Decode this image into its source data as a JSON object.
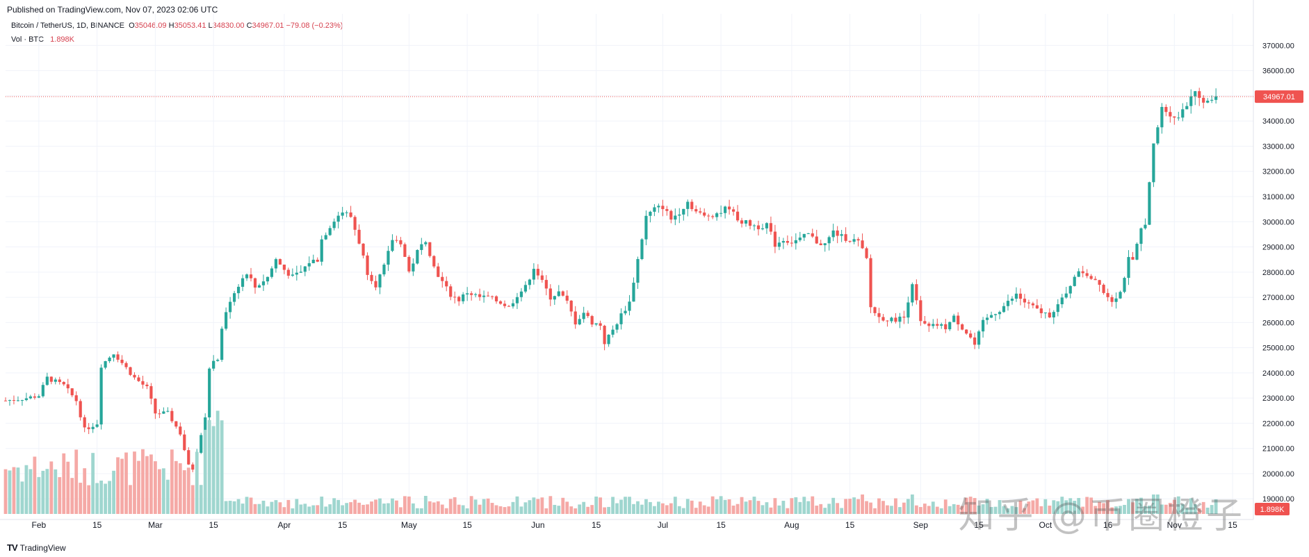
{
  "header": {
    "published": "Published on TradingView.com, Nov 07, 2023 02:06 UTC"
  },
  "legend": {
    "symbol": "Bitcoin / TetherUS, 1D, BINANCE",
    "o_label": "O",
    "open": "35046.09",
    "h_label": "H",
    "high": "35053.41",
    "l_label": "L",
    "low": "34830.00",
    "c_label": "C",
    "close": "34967.01",
    "change": "−79.08 (−0.23%)",
    "vol_label": "Vol · BTC",
    "vol_value": "1.898K"
  },
  "price_badge": "34967.01",
  "volume_badge": "1.898K",
  "footer": {
    "logo": "TV",
    "brand": "TradingView"
  },
  "watermark": "知乎 @币圈橙子",
  "colors": {
    "up": "#26a69a",
    "down": "#ef5350",
    "up_vol": "#9fd6cf",
    "down_vol": "#f5a9a6",
    "grid": "#f0f3fa",
    "axis_text": "#131722"
  },
  "chart_data": {
    "type": "candlestick",
    "title": "Bitcoin / TetherUS, 1D, BINANCE",
    "ylim": [
      18400,
      37700
    ],
    "y_ticks": [
      19000,
      20000,
      21000,
      22000,
      23000,
      24000,
      25000,
      26000,
      27000,
      28000,
      29000,
      30000,
      31000,
      32000,
      33000,
      34000,
      35000,
      36000,
      37000
    ],
    "y_tick_labels": [
      "19000.00",
      "20000.00",
      "21000.00",
      "22000.00",
      "23000.00",
      "24000.00",
      "25000.00",
      "26000.00",
      "27000.00",
      "28000.00",
      "29000.00",
      "30000.00",
      "31000.00",
      "32000.00",
      "33000.00",
      "34000.00",
      "35000.00",
      "36000.00",
      "37000.00"
    ],
    "x_ticks": [
      {
        "label": "Feb",
        "day": 0
      },
      {
        "label": "15",
        "day": 14
      },
      {
        "label": "Mar",
        "day": 28
      },
      {
        "label": "15",
        "day": 42
      },
      {
        "label": "Apr",
        "day": 59
      },
      {
        "label": "15",
        "day": 73
      },
      {
        "label": "May",
        "day": 89
      },
      {
        "label": "15",
        "day": 103
      },
      {
        "label": "Jun",
        "day": 120
      },
      {
        "label": "15",
        "day": 134
      },
      {
        "label": "Jul",
        "day": 150
      },
      {
        "label": "15",
        "day": 164
      },
      {
        "label": "Aug",
        "day": 181
      },
      {
        "label": "15",
        "day": 195
      },
      {
        "label": "Sep",
        "day": 212
      },
      {
        "label": "15",
        "day": 226
      },
      {
        "label": "Oct",
        "day": 242
      },
      {
        "label": "16",
        "day": 257
      },
      {
        "label": "Nov",
        "day": 273
      },
      {
        "label": "15",
        "day": 287
      }
    ],
    "day_range": [
      -8,
      292
    ],
    "current_price": 34967.01,
    "close_series": [
      [
        -8,
        22900
      ],
      [
        -3,
        23000
      ],
      [
        0,
        23100
      ],
      [
        2,
        23800
      ],
      [
        6,
        23500
      ],
      [
        9,
        22900
      ],
      [
        11,
        21750
      ],
      [
        14,
        22000
      ],
      [
        15,
        24300
      ],
      [
        18,
        24800
      ],
      [
        21,
        24200
      ],
      [
        23,
        23800
      ],
      [
        26,
        23400
      ],
      [
        28,
        22400
      ],
      [
        31,
        22400
      ],
      [
        34,
        21600
      ],
      [
        36,
        20300
      ],
      [
        37,
        20200
      ],
      [
        40,
        22300
      ],
      [
        41,
        24200
      ],
      [
        43,
        24600
      ],
      [
        44,
        25800
      ],
      [
        46,
        26900
      ],
      [
        48,
        27500
      ],
      [
        50,
        28000
      ],
      [
        52,
        27400
      ],
      [
        55,
        27800
      ],
      [
        57,
        28500
      ],
      [
        59,
        28100
      ],
      [
        61,
        27800
      ],
      [
        63,
        28000
      ],
      [
        65,
        28400
      ],
      [
        67,
        28500
      ],
      [
        68,
        29300
      ],
      [
        71,
        30100
      ],
      [
        73,
        30400
      ],
      [
        75,
        30200
      ],
      [
        77,
        29200
      ],
      [
        79,
        28000
      ],
      [
        81,
        27500
      ],
      [
        83,
        28200
      ],
      [
        85,
        29300
      ],
      [
        87,
        29200
      ],
      [
        89,
        28000
      ],
      [
        91,
        28800
      ],
      [
        93,
        29300
      ],
      [
        95,
        28200
      ],
      [
        97,
        27600
      ],
      [
        99,
        27100
      ],
      [
        101,
        26900
      ],
      [
        103,
        27200
      ],
      [
        106,
        27000
      ],
      [
        108,
        27000
      ],
      [
        111,
        26800
      ],
      [
        113,
        26600
      ],
      [
        115,
        27100
      ],
      [
        117,
        27400
      ],
      [
        119,
        28200
      ],
      [
        121,
        27600
      ],
      [
        123,
        27000
      ],
      [
        125,
        27200
      ],
      [
        127,
        26800
      ],
      [
        129,
        26000
      ],
      [
        131,
        26400
      ],
      [
        133,
        26000
      ],
      [
        135,
        25900
      ],
      [
        136,
        25200
      ],
      [
        138,
        25700
      ],
      [
        140,
        26300
      ],
      [
        142,
        26800
      ],
      [
        144,
        28500
      ],
      [
        146,
        30200
      ],
      [
        148,
        30500
      ],
      [
        150,
        30600
      ],
      [
        152,
        30100
      ],
      [
        154,
        30400
      ],
      [
        156,
        30800
      ],
      [
        158,
        30400
      ],
      [
        160,
        30200
      ],
      [
        162,
        30300
      ],
      [
        164,
        30400
      ],
      [
        166,
        30600
      ],
      [
        167,
        30300
      ],
      [
        169,
        30000
      ],
      [
        171,
        29900
      ],
      [
        173,
        29800
      ],
      [
        175,
        29900
      ],
      [
        177,
        29100
      ],
      [
        179,
        29300
      ],
      [
        181,
        29200
      ],
      [
        183,
        29300
      ],
      [
        185,
        29500
      ],
      [
        187,
        29200
      ],
      [
        189,
        29100
      ],
      [
        191,
        29600
      ],
      [
        193,
        29400
      ],
      [
        195,
        29300
      ],
      [
        197,
        29200
      ],
      [
        199,
        28500
      ],
      [
        200,
        26600
      ],
      [
        202,
        26200
      ],
      [
        205,
        26100
      ],
      [
        208,
        26200
      ],
      [
        210,
        27600
      ],
      [
        212,
        26000
      ],
      [
        214,
        25800
      ],
      [
        216,
        25900
      ],
      [
        218,
        25800
      ],
      [
        220,
        26200
      ],
      [
        222,
        25800
      ],
      [
        224,
        25400
      ],
      [
        225,
        25100
      ],
      [
        227,
        26000
      ],
      [
        229,
        26300
      ],
      [
        231,
        26500
      ],
      [
        233,
        26800
      ],
      [
        235,
        27100
      ],
      [
        237,
        26800
      ],
      [
        239,
        26600
      ],
      [
        241,
        26400
      ],
      [
        243,
        26300
      ],
      [
        245,
        26700
      ],
      [
        247,
        27100
      ],
      [
        249,
        27900
      ],
      [
        251,
        28000
      ],
      [
        253,
        27800
      ],
      [
        255,
        27600
      ],
      [
        256,
        27200
      ],
      [
        258,
        26900
      ],
      [
        260,
        27200
      ],
      [
        262,
        28500
      ],
      [
        263,
        28400
      ],
      [
        265,
        29700
      ],
      [
        266,
        30000
      ],
      [
        268,
        33000
      ],
      [
        270,
        34500
      ],
      [
        272,
        34300
      ],
      [
        274,
        34100
      ],
      [
        275,
        34500
      ],
      [
        276,
        34700
      ],
      [
        278,
        35300
      ],
      [
        279,
        34800
      ],
      [
        281,
        34700
      ],
      [
        283,
        35046
      ]
    ],
    "volume": {
      "unit": "BTC",
      "last": "1.898K"
    }
  }
}
